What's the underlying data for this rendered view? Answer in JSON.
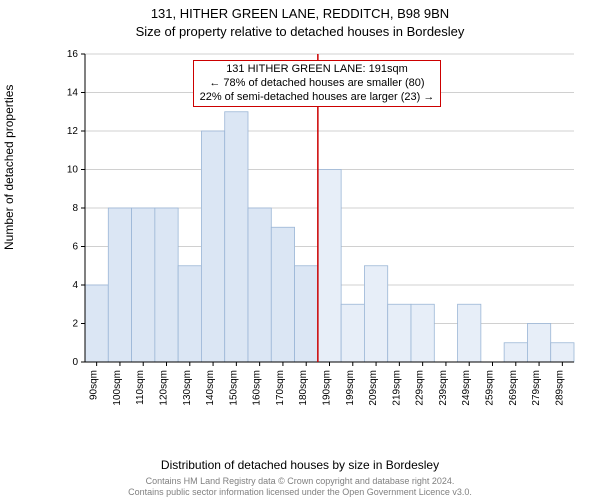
{
  "title_line1": "131, HITHER GREEN LANE, REDDITCH, B98 9BN",
  "title_line2": "Size of property relative to detached houses in Bordesley",
  "ylabel": "Number of detached properties",
  "xlabel": "Distribution of detached houses by size in Bordesley",
  "footer_line1": "Contains HM Land Registry data © Crown copyright and database right 2024.",
  "footer_line2": "Contains public sector information licensed under the Open Government Licence v3.0.",
  "chart": {
    "type": "histogram",
    "ylim": [
      0,
      16
    ],
    "ytick_step": 2,
    "yticks": [
      0,
      2,
      4,
      6,
      8,
      10,
      12,
      14,
      16
    ],
    "categories": [
      "90sqm",
      "100sqm",
      "110sqm",
      "120sqm",
      "130sqm",
      "140sqm",
      "150sqm",
      "160sqm",
      "170sqm",
      "180sqm",
      "190sqm",
      "199sqm",
      "209sqm",
      "219sqm",
      "229sqm",
      "239sqm",
      "249sqm",
      "259sqm",
      "269sqm",
      "279sqm",
      "289sqm"
    ],
    "values": [
      4,
      8,
      8,
      8,
      5,
      12,
      13,
      8,
      7,
      5,
      10,
      3,
      5,
      3,
      3,
      0,
      3,
      0,
      1,
      2,
      1
    ],
    "bar_color_left": "#dbe6f4",
    "bar_color_right": "#e7eef8",
    "bar_border": "#9bb6d6",
    "grid_color": "#d0d0d0",
    "background_color": "#ffffff",
    "axis_color": "#000000",
    "marker_color": "#cc0000",
    "marker_index": 10,
    "tick_fontsize": 10,
    "label_fontsize": 12,
    "title_fontsize": 13
  },
  "annotation": {
    "line1": "131 HITHER GREEN LANE: 191sqm",
    "line2": "← 78% of detached houses are smaller (80)",
    "line3": "22% of semi-detached houses are larger (23) →"
  }
}
